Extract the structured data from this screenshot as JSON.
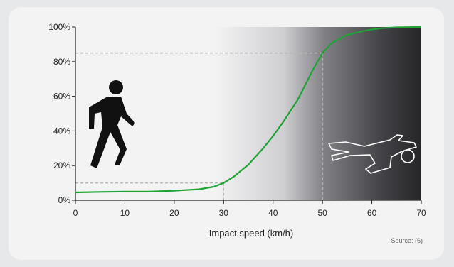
{
  "chart_data": {
    "type": "line",
    "xlabel": "Impact speed (km/h)",
    "ylabel": "",
    "xlim": [
      0,
      70
    ],
    "ylim": [
      0,
      100
    ],
    "x_ticks": [
      "0",
      "10",
      "20",
      "30",
      "40",
      "50",
      "60",
      "70"
    ],
    "y_ticks": [
      "0%",
      "20%",
      "40%",
      "60%",
      "80%",
      "100%"
    ],
    "grid": false,
    "series": [
      {
        "color": "#1fa334",
        "x": [
          0,
          5,
          10,
          15,
          20,
          25,
          28,
          30,
          32,
          35,
          38,
          40,
          42,
          45,
          48,
          50,
          52,
          55,
          58,
          60,
          62,
          65,
          70
        ],
        "y": [
          4.5,
          4.8,
          5,
          5,
          5.5,
          6.3,
          7.8,
          10,
          13.5,
          20.5,
          30,
          37,
          45,
          58,
          75,
          85,
          91,
          95.5,
          97.5,
          98.6,
          99.3,
          99.8,
          100
        ]
      }
    ],
    "reference_points": [
      {
        "x": 30,
        "y": 10
      },
      {
        "x": 50,
        "y": 85
      }
    ],
    "source_note": "Source: (6)",
    "colors": {
      "curve": "#1fa334",
      "reference_lines": "#b7b7b7",
      "background_dark": "#222222",
      "background_light": "#f3f3f4"
    },
    "icons": [
      "walking-pedestrian-icon",
      "fallen-body-outline-icon"
    ]
  }
}
